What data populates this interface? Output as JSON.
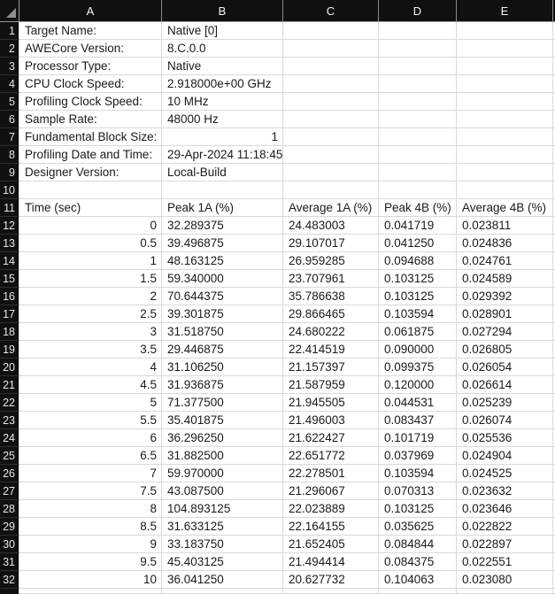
{
  "sheet": {
    "column_letters": [
      "A",
      "B",
      "C",
      "D",
      "E"
    ],
    "row_numbers": [
      "1",
      "2",
      "3",
      "4",
      "5",
      "6",
      "7",
      "8",
      "9",
      "10",
      "11",
      "12",
      "13",
      "14",
      "15",
      "16",
      "17",
      "18",
      "19",
      "20",
      "21",
      "22",
      "23",
      "24",
      "25",
      "26",
      "27",
      "28",
      "29",
      "30",
      "31",
      "32"
    ],
    "info": [
      {
        "label": "Target Name:",
        "value": "Native [0]"
      },
      {
        "label": "AWECore Version:",
        "value": "8.C.0.0"
      },
      {
        "label": "Processor Type:",
        "value": "Native"
      },
      {
        "label": "CPU Clock Speed:",
        "value": "2.918000e+00 GHz"
      },
      {
        "label": "Profiling Clock Speed:",
        "value": "10 MHz"
      },
      {
        "label": "Sample Rate:",
        "value": "48000 Hz"
      },
      {
        "label": "Fundamental Block Size:",
        "value": "1",
        "value_align": "right"
      },
      {
        "label": "Profiling Date and Time:",
        "value": "29-Apr-2024 11:18:45"
      },
      {
        "label": "Designer Version:",
        "value": "Local-Build"
      }
    ],
    "data_table": {
      "header_row": "11",
      "headers": [
        "Time (sec)",
        "Peak 1A (%)",
        "Average 1A (%)",
        "Peak 4B (%)",
        "Average 4B (%)"
      ],
      "rows": [
        [
          "0",
          "32.289375",
          "24.483003",
          "0.041719",
          "0.023811"
        ],
        [
          "0.5",
          "39.496875",
          "29.107017",
          "0.041250",
          "0.024836"
        ],
        [
          "1",
          "48.163125",
          "26.959285",
          "0.094688",
          "0.024761"
        ],
        [
          "1.5",
          "59.340000",
          "23.707961",
          "0.103125",
          "0.024589"
        ],
        [
          "2",
          "70.644375",
          "35.786638",
          "0.103125",
          "0.029392"
        ],
        [
          "2.5",
          "39.301875",
          "29.866465",
          "0.103594",
          "0.028901"
        ],
        [
          "3",
          "31.518750",
          "24.680222",
          "0.061875",
          "0.027294"
        ],
        [
          "3.5",
          "29.446875",
          "22.414519",
          "0.090000",
          "0.026805"
        ],
        [
          "4",
          "31.106250",
          "21.157397",
          "0.099375",
          "0.026054"
        ],
        [
          "4.5",
          "31.936875",
          "21.587959",
          "0.120000",
          "0.026614"
        ],
        [
          "5",
          "71.377500",
          "21.945505",
          "0.044531",
          "0.025239"
        ],
        [
          "5.5",
          "35.401875",
          "21.496003",
          "0.083437",
          "0.026074"
        ],
        [
          "6",
          "36.296250",
          "21.622427",
          "0.101719",
          "0.025536"
        ],
        [
          "6.5",
          "31.882500",
          "22.651772",
          "0.037969",
          "0.024904"
        ],
        [
          "7",
          "59.970000",
          "22.278501",
          "0.103594",
          "0.024525"
        ],
        [
          "7.5",
          "43.087500",
          "21.296067",
          "0.070313",
          "0.023632"
        ],
        [
          "8",
          "104.893125",
          "22.023889",
          "0.103125",
          "0.023646"
        ],
        [
          "8.5",
          "31.633125",
          "22.164155",
          "0.035625",
          "0.022822"
        ],
        [
          "9",
          "33.183750",
          "21.652405",
          "0.084844",
          "0.022897"
        ],
        [
          "9.5",
          "45.403125",
          "21.494414",
          "0.084375",
          "0.022551"
        ],
        [
          "10",
          "36.041250",
          "20.627732",
          "0.104063",
          "0.023080"
        ]
      ]
    },
    "colors": {
      "header_bg": "#101010",
      "header_text": "#f5f5f5",
      "gridline": "#d9d9d9",
      "header_divider": "#8a8a8a",
      "cell_text": "#1a1a1a",
      "select_all_triangle": "#8f8f8f"
    }
  }
}
